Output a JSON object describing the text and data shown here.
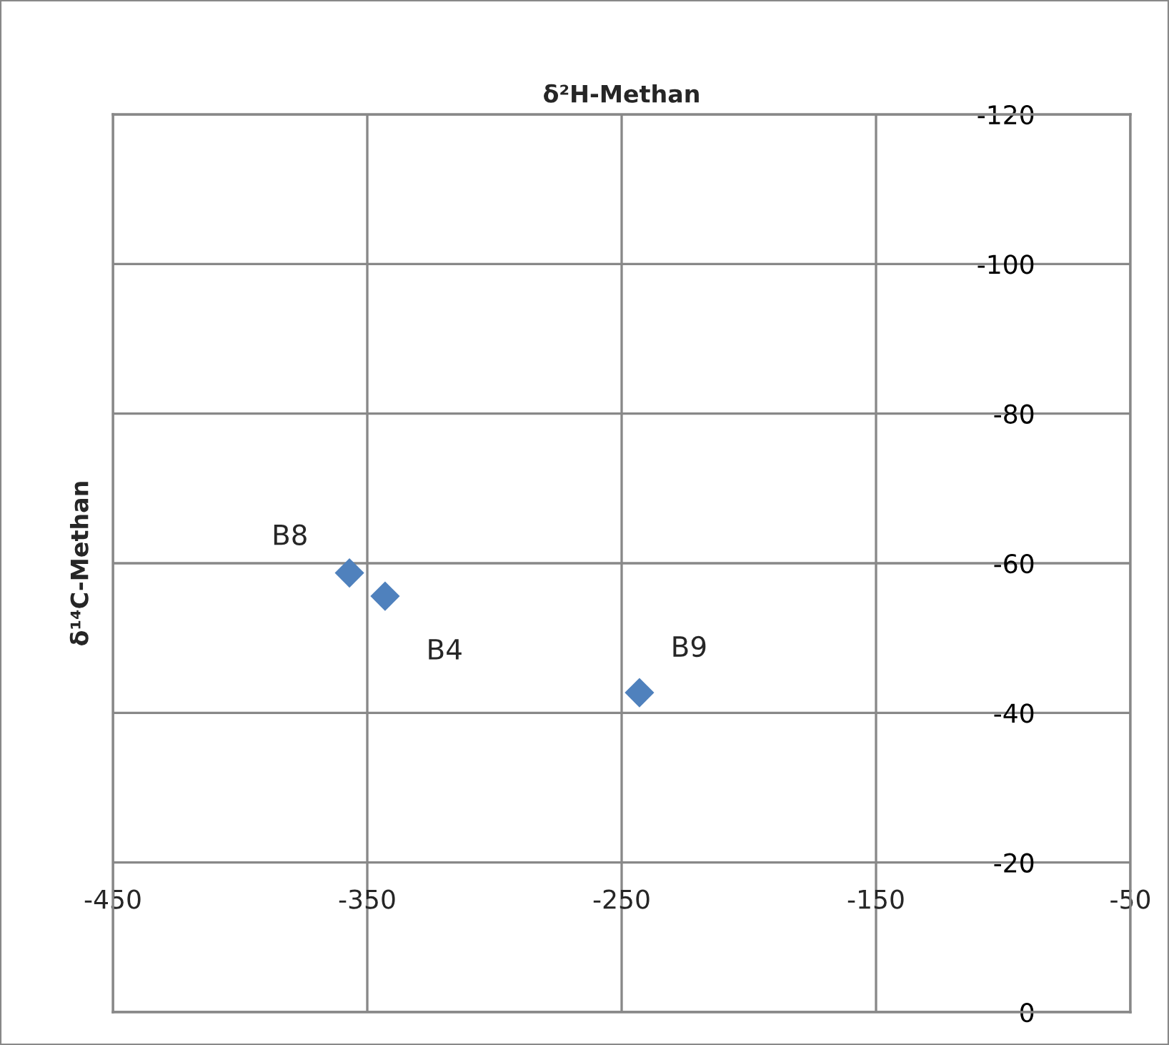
{
  "chart_data": {
    "type": "scatter",
    "xlabel": "δ²H-Methan",
    "ylabel": "δ¹⁴C-Methan",
    "x": [
      -357,
      -343,
      -243
    ],
    "series": [
      {
        "color": "#4f81bd",
        "values": [
          -58.7,
          -55.6,
          -42.7
        ]
      }
    ],
    "annotations": [
      {
        "text": "B8",
        "x": -357,
        "y": -58.7
      },
      {
        "text": "B4",
        "x": -343,
        "y": -55.6
      },
      {
        "text": "B9",
        "x": -243,
        "y": -42.7
      }
    ],
    "xlim": [
      -450,
      -50
    ],
    "xticks": [
      -450,
      -350,
      -250,
      -150,
      -50
    ],
    "ylim": [
      0,
      -120
    ],
    "yticks": [
      0,
      -20,
      -40,
      -60,
      -80,
      -100,
      -120
    ],
    "grid": true,
    "marker": "diamond"
  }
}
